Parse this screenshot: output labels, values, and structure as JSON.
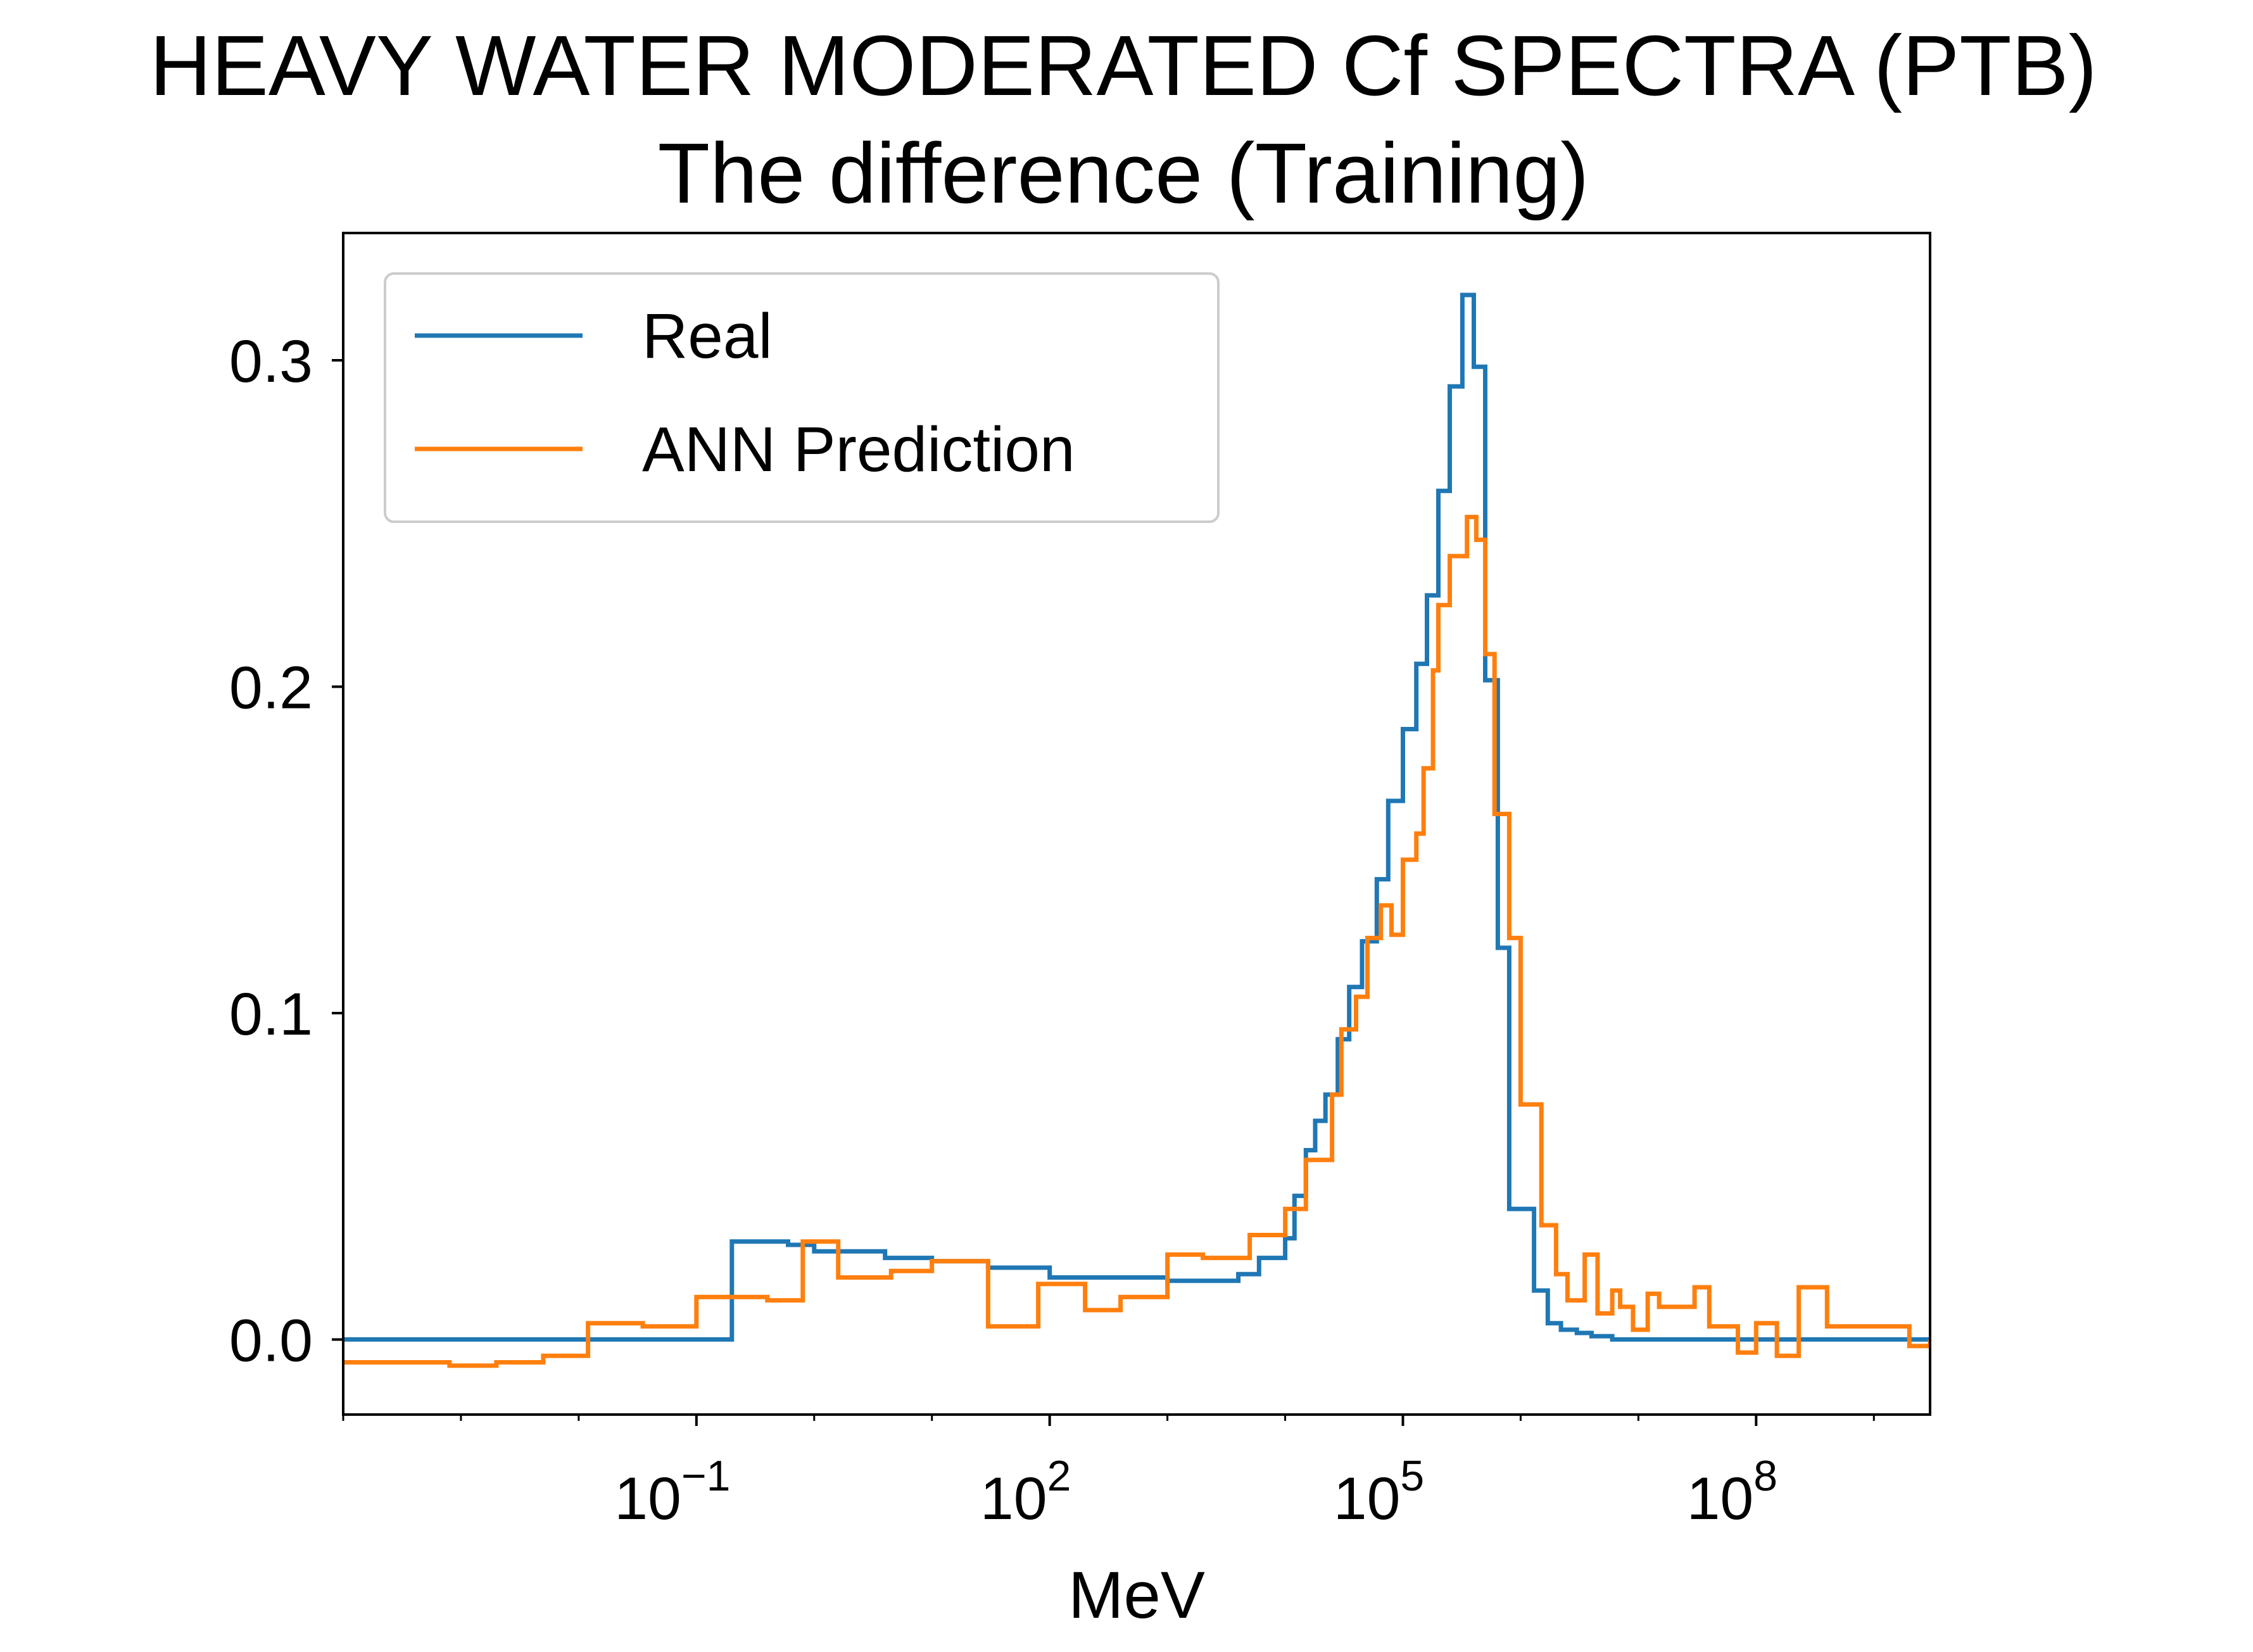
{
  "chart_data": {
    "type": "line",
    "drawstyle": "steps-post",
    "title": "HEAVY WATER MODERATED Cf SPECTRA (PTB)",
    "subtitle": "The difference (Training)",
    "xlabel": "MeV",
    "ylabel": "",
    "xscale": "log",
    "xlim": [
      0.0001,
      3000000000.0
    ],
    "ylim": [
      -0.023,
      0.339
    ],
    "grid": false,
    "legend_position": "top-left",
    "xticks": [
      {
        "value": 0.1,
        "base": "10",
        "exp": "−1"
      },
      {
        "value": 100,
        "base": "10",
        "exp": "2"
      },
      {
        "value": 100000,
        "base": "10",
        "exp": "5"
      },
      {
        "value": 100000000,
        "base": "10",
        "exp": "8"
      }
    ],
    "yticks": [
      {
        "value": 0.0,
        "label": "0.0"
      },
      {
        "value": 0.1,
        "label": "0.1"
      },
      {
        "value": 0.2,
        "label": "0.2"
      },
      {
        "value": 0.3,
        "label": "0.3"
      }
    ],
    "series": [
      {
        "name": "Real",
        "color": "#1f77b4",
        "x": [
          0.0001,
          0.2,
          0.6,
          1,
          4,
          10,
          30,
          100,
          500,
          1000,
          4000,
          6000,
          10000,
          12000,
          15000,
          18000,
          22000,
          28000,
          35000,
          45000,
          60000,
          75000,
          100000,
          130000,
          160000,
          200000,
          250000,
          320000,
          400000,
          500000,
          640000,
          800000,
          1000000,
          1300000,
          1700000,
          2200000,
          3000000,
          4000000,
          6000000,
          8000000,
          12000000,
          20000000,
          3000000000
        ],
        "y": [
          0.0,
          0.03,
          0.029,
          0.027,
          0.025,
          0.024,
          0.022,
          0.019,
          0.019,
          0.018,
          0.02,
          0.025,
          0.031,
          0.044,
          0.058,
          0.067,
          0.075,
          0.092,
          0.108,
          0.122,
          0.141,
          0.165,
          0.187,
          0.207,
          0.228,
          0.26,
          0.292,
          0.32,
          0.298,
          0.202,
          0.12,
          0.04,
          0.04,
          0.015,
          0.005,
          0.003,
          0.002,
          0.001,
          0.0,
          0.0,
          0.0,
          0.0,
          0.0
        ]
      },
      {
        "name": "ANN Prediction",
        "color": "#ff7f0e",
        "x": [
          0.0001,
          0.0008,
          0.002,
          0.005,
          0.012,
          0.035,
          0.1,
          0.4,
          0.8,
          1.6,
          4.5,
          10,
          30,
          80,
          200,
          400,
          1000,
          2000,
          5000,
          10000,
          15000,
          25000,
          30000,
          40000,
          50000,
          65000,
          80000,
          100000,
          130000,
          150000,
          180000,
          200000,
          250000,
          350000,
          420000,
          500000,
          600000,
          800000,
          1000000,
          1500000,
          2000000,
          2500000,
          3500000,
          4500000,
          6000000,
          7000000,
          9000000,
          12000000,
          15000000,
          30000000,
          40000000,
          70000000,
          100000000,
          150000000,
          230000000,
          400000000,
          2000000000,
          3000000000
        ],
        "y": [
          -0.007,
          -0.008,
          -0.007,
          -0.005,
          0.005,
          0.004,
          0.013,
          0.012,
          0.03,
          0.019,
          0.021,
          0.024,
          0.004,
          0.017,
          0.009,
          0.013,
          0.026,
          0.025,
          0.032,
          0.04,
          0.055,
          0.075,
          0.095,
          0.105,
          0.123,
          0.133,
          0.124,
          0.147,
          0.155,
          0.175,
          0.205,
          0.225,
          0.24,
          0.252,
          0.245,
          0.21,
          0.161,
          0.123,
          0.072,
          0.035,
          0.02,
          0.012,
          0.026,
          0.008,
          0.015,
          0.01,
          0.003,
          0.014,
          0.01,
          0.016,
          0.004,
          -0.004,
          0.005,
          -0.005,
          0.016,
          0.004,
          -0.002,
          0.0
        ]
      }
    ]
  }
}
